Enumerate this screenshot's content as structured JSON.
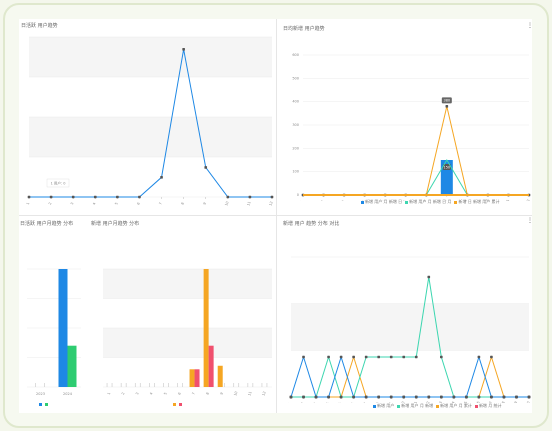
{
  "panels": {
    "p1": {
      "title": "日活跃 用户趋势"
    },
    "p2": {
      "title": "日均新增 用户趋势"
    },
    "p3": {
      "title": "日活跃 用户月趋势 分布"
    },
    "p4": {
      "title": "新增 用户月趋势 分布"
    },
    "p5": {
      "title": "新增 用户 趋势 分布 对比"
    }
  },
  "colors": {
    "blue": "#1e88e5",
    "orange": "#f5a623",
    "teal": "#3dd6b0",
    "red": "#f0506e",
    "green": "#2ecc71",
    "grid": "#ebebeb",
    "band": "#f5f5f5"
  },
  "chart_data": [
    {
      "type": "line",
      "x": [
        "1",
        "2",
        "3",
        "4",
        "5",
        "6",
        "7",
        "8",
        "9",
        "10",
        "11",
        "12"
      ],
      "series": [
        {
          "values": [
            0,
            0,
            0,
            0,
            0,
            0,
            8,
            60,
            12,
            0,
            0,
            0
          ]
        }
      ],
      "ylim": [
        0,
        65
      ],
      "tooltip": "1 用户: 0"
    },
    {
      "type": "line",
      "x": [
        "1",
        "2",
        "3",
        "4",
        "5",
        "6",
        "7",
        "8",
        "9",
        "10",
        "11",
        "12"
      ],
      "series": [
        {
          "values": [
            0,
            0,
            0,
            0,
            0,
            0,
            0,
            380,
            0,
            0,
            0,
            0
          ],
          "color": "orange",
          "point_labels": true
        },
        {
          "values": [
            0,
            0,
            0,
            0,
            0,
            0,
            0,
            150,
            0,
            0,
            0,
            0
          ],
          "color": "teal"
        },
        {
          "bar_values": [
            0,
            0,
            0,
            0,
            0,
            0,
            0,
            150,
            0,
            0,
            0,
            0
          ],
          "color": "blue"
        }
      ],
      "ylim": [
        0,
        600
      ],
      "yticks": [
        "0",
        "100",
        "200",
        "300",
        "400",
        "500",
        "600"
      ],
      "legend": [
        "新增 用户 月 新增 日",
        "新增 用户 月 新增 日 月",
        "新增 日 新增 用户 累计"
      ]
    },
    {
      "type": "bar",
      "categories": [
        "2023",
        "2024"
      ],
      "series": [
        {
          "values": [
            0,
            100
          ],
          "color": "blue"
        },
        {
          "values": [
            0,
            35
          ],
          "color": "green"
        }
      ],
      "ylim": [
        0,
        100
      ]
    },
    {
      "type": "bar",
      "categories": [
        "1",
        "2",
        "3",
        "4",
        "5",
        "6",
        "7",
        "8",
        "9",
        "10",
        "11",
        "12"
      ],
      "series": [
        {
          "values": [
            0,
            0,
            0,
            0,
            0,
            0,
            15,
            100,
            18,
            0,
            0,
            0
          ],
          "color": "orange"
        },
        {
          "values": [
            0,
            0,
            0,
            0,
            0,
            0,
            15,
            35,
            0,
            0,
            0,
            0
          ],
          "color": "red"
        }
      ],
      "ylim": [
        0,
        100
      ]
    },
    {
      "type": "line",
      "x": [
        "1",
        "2",
        "3",
        "4",
        "5",
        "6",
        "7",
        "8",
        "9",
        "10",
        "11",
        "12",
        "13",
        "14",
        "15",
        "16",
        "17",
        "18",
        "19",
        "20"
      ],
      "series": [
        {
          "values": [
            0,
            1,
            0,
            0,
            1,
            0,
            0,
            0,
            0,
            0,
            0,
            0,
            0,
            0,
            0,
            1,
            0,
            0,
            0,
            0
          ],
          "color": "blue"
        },
        {
          "values": [
            0,
            0,
            0,
            1,
            0,
            0,
            1,
            1,
            1,
            1,
            1,
            3,
            1,
            0,
            0,
            0,
            0,
            0,
            0,
            0
          ],
          "color": "teal"
        },
        {
          "values": [
            0,
            0,
            0,
            0,
            0,
            1,
            0,
            0,
            0,
            0,
            0,
            0,
            0,
            0,
            0,
            0,
            1,
            0,
            0,
            0
          ],
          "color": "orange"
        },
        {
          "values": [
            0,
            0,
            0,
            0,
            0,
            0,
            0,
            0,
            0,
            0,
            0,
            0,
            0,
            0,
            0,
            0,
            0,
            0,
            0,
            0
          ],
          "color": "red"
        }
      ],
      "ylim": [
        0,
        3.5
      ],
      "legend": [
        "新增 用户",
        "新增 用户 月 新增",
        "新增 用户 月 累计",
        "新增 月 统计"
      ]
    }
  ]
}
